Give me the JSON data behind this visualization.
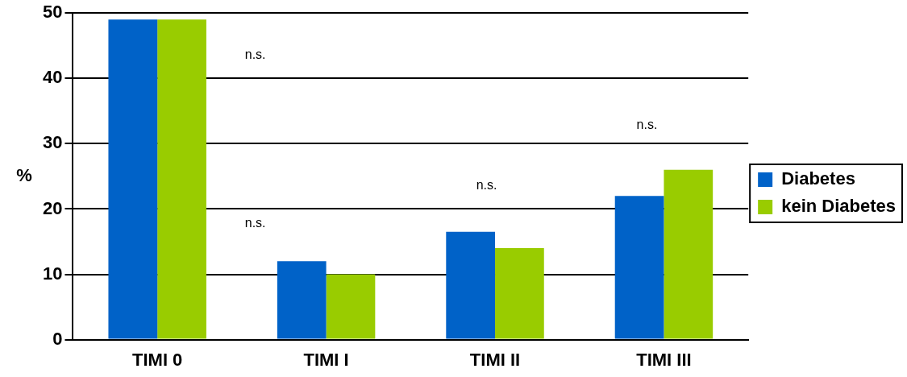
{
  "chart_data": {
    "type": "bar",
    "ylabel": "%",
    "categories": [
      "TIMI 0",
      "TIMI I",
      "TIMI II",
      "TIMI III"
    ],
    "series": [
      {
        "name": "Diabetes",
        "color": "#0062c8",
        "values": [
          49,
          12,
          16.5,
          22
        ]
      },
      {
        "name": "kein Diabetes",
        "color": "#99cc00",
        "values": [
          49,
          10,
          14,
          26
        ]
      }
    ],
    "ylim": [
      0,
      50
    ],
    "yticks": [
      0,
      10,
      20,
      30,
      40,
      50
    ],
    "grid": "y",
    "legend": "right",
    "annotations": [
      "n.s.",
      "n.s.",
      "n.s.",
      "n.s."
    ]
  }
}
